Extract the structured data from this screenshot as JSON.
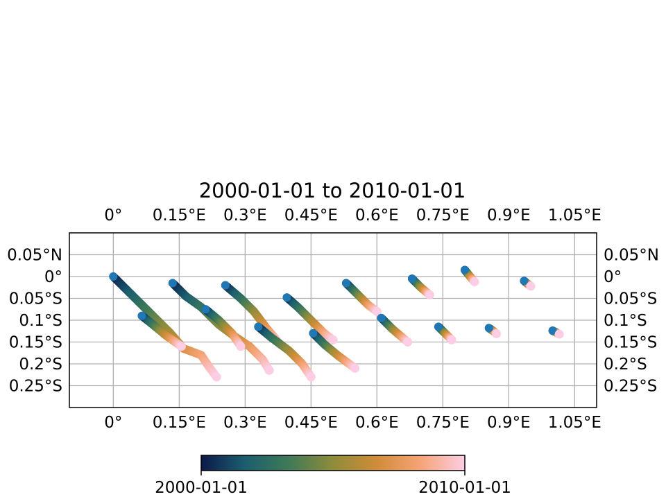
{
  "title": "2000-01-01 to 2010-01-01",
  "map": {
    "lon_range": [
      -0.1,
      1.1
    ],
    "lat_range": [
      -0.3,
      0.1
    ],
    "lon_ticks": [
      {
        "value": 0.0,
        "label": "0°"
      },
      {
        "value": 0.15,
        "label": "0.15°E"
      },
      {
        "value": 0.3,
        "label": "0.3°E"
      },
      {
        "value": 0.45,
        "label": "0.45°E"
      },
      {
        "value": 0.6,
        "label": "0.6°E"
      },
      {
        "value": 0.75,
        "label": "0.75°E"
      },
      {
        "value": 0.9,
        "label": "0.9°E"
      },
      {
        "value": 1.05,
        "label": "1.05°E"
      }
    ],
    "lat_ticks": [
      {
        "value": 0.05,
        "label": "0.05°N"
      },
      {
        "value": 0.0,
        "label": "0°"
      },
      {
        "value": -0.05,
        "label": "0.05°S"
      },
      {
        "value": -0.1,
        "label": "0.1°S"
      },
      {
        "value": -0.15,
        "label": "0.15°S"
      },
      {
        "value": -0.2,
        "label": "0.2°S"
      },
      {
        "value": -0.25,
        "label": "0.25°S"
      }
    ],
    "grid": true,
    "start_marker_color": "#1f77b4",
    "end_marker_color": "#fccde5",
    "trajectories": [
      {
        "points": [
          [
            0.0,
            0.0
          ],
          [
            0.03,
            -0.03
          ],
          [
            0.07,
            -0.07
          ],
          [
            0.1,
            -0.1
          ],
          [
            0.13,
            -0.13
          ],
          [
            0.16,
            -0.165
          ],
          [
            0.2,
            -0.18
          ],
          [
            0.22,
            -0.21
          ],
          [
            0.235,
            -0.23
          ]
        ]
      },
      {
        "points": [
          [
            0.065,
            -0.09
          ],
          [
            0.09,
            -0.11
          ],
          [
            0.12,
            -0.135
          ],
          [
            0.155,
            -0.16
          ]
        ]
      },
      {
        "points": [
          [
            0.135,
            -0.015
          ],
          [
            0.165,
            -0.045
          ],
          [
            0.2,
            -0.07
          ],
          [
            0.24,
            -0.11
          ],
          [
            0.28,
            -0.14
          ],
          [
            0.31,
            -0.16
          ],
          [
            0.34,
            -0.19
          ],
          [
            0.355,
            -0.215
          ]
        ]
      },
      {
        "points": [
          [
            0.21,
            -0.075
          ],
          [
            0.24,
            -0.1
          ],
          [
            0.27,
            -0.13
          ],
          [
            0.29,
            -0.16
          ]
        ]
      },
      {
        "points": [
          [
            0.255,
            -0.02
          ],
          [
            0.29,
            -0.05
          ],
          [
            0.32,
            -0.08
          ],
          [
            0.35,
            -0.12
          ],
          [
            0.38,
            -0.155
          ]
        ]
      },
      {
        "points": [
          [
            0.33,
            -0.115
          ],
          [
            0.36,
            -0.14
          ],
          [
            0.4,
            -0.17
          ],
          [
            0.43,
            -0.2
          ],
          [
            0.45,
            -0.23
          ]
        ]
      },
      {
        "points": [
          [
            0.395,
            -0.048
          ],
          [
            0.42,
            -0.07
          ],
          [
            0.45,
            -0.1
          ],
          [
            0.48,
            -0.13
          ],
          [
            0.5,
            -0.145
          ]
        ]
      },
      {
        "points": [
          [
            0.455,
            -0.13
          ],
          [
            0.48,
            -0.155
          ],
          [
            0.51,
            -0.18
          ],
          [
            0.55,
            -0.21
          ]
        ]
      },
      {
        "points": [
          [
            0.53,
            -0.015
          ],
          [
            0.555,
            -0.04
          ],
          [
            0.58,
            -0.065
          ],
          [
            0.6,
            -0.08
          ]
        ]
      },
      {
        "points": [
          [
            0.61,
            -0.095
          ],
          [
            0.635,
            -0.12
          ],
          [
            0.67,
            -0.15
          ]
        ]
      },
      {
        "points": [
          [
            0.68,
            -0.005
          ],
          [
            0.7,
            -0.025
          ],
          [
            0.72,
            -0.042
          ]
        ]
      },
      {
        "points": [
          [
            0.74,
            -0.115
          ],
          [
            0.755,
            -0.13
          ],
          [
            0.77,
            -0.145
          ]
        ]
      },
      {
        "points": [
          [
            0.8,
            0.015
          ],
          [
            0.812,
            0.0
          ],
          [
            0.822,
            -0.012
          ]
        ]
      },
      {
        "points": [
          [
            0.855,
            -0.118
          ],
          [
            0.865,
            -0.125
          ],
          [
            0.872,
            -0.131
          ]
        ]
      },
      {
        "points": [
          [
            0.935,
            -0.01
          ],
          [
            0.942,
            -0.016
          ],
          [
            0.95,
            -0.022
          ]
        ]
      },
      {
        "points": [
          [
            1.0,
            -0.124
          ],
          [
            1.008,
            -0.128
          ],
          [
            1.015,
            -0.132
          ]
        ]
      }
    ]
  },
  "colorbar": {
    "start_label": "2000-01-01",
    "end_label": "2010-01-01",
    "colors": [
      "#0b1a4a",
      "#1b5e6e",
      "#3f7a57",
      "#8f8c3a",
      "#d08c39",
      "#f6a477",
      "#fccde5"
    ]
  }
}
